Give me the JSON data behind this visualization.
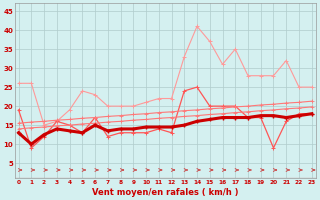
{
  "x": [
    0,
    1,
    2,
    3,
    4,
    5,
    6,
    7,
    8,
    9,
    10,
    11,
    12,
    13,
    14,
    15,
    16,
    17,
    18,
    19,
    20,
    21,
    22,
    23
  ],
  "line_rafales_max": [
    26,
    26,
    15,
    16,
    19,
    24,
    23,
    20,
    20,
    20,
    21,
    22,
    22,
    33,
    41,
    37,
    31,
    35,
    28,
    28,
    28,
    32,
    25,
    25
  ],
  "line_vent_moyen": [
    19,
    9,
    12,
    16,
    15,
    13,
    17,
    12,
    13,
    13,
    13,
    14,
    13,
    24,
    25,
    20,
    20,
    20,
    17,
    17,
    9,
    16,
    18,
    18
  ],
  "line_trend1": [
    15.5,
    15.8,
    16.0,
    16.3,
    16.5,
    16.8,
    17.0,
    17.3,
    17.5,
    17.8,
    18.0,
    18.3,
    18.5,
    18.8,
    19.0,
    19.3,
    19.5,
    19.8,
    20.0,
    20.3,
    20.5,
    20.8,
    21.0,
    21.3
  ],
  "line_trend2": [
    14.0,
    14.3,
    14.5,
    14.8,
    15.0,
    15.3,
    15.5,
    15.8,
    16.0,
    16.3,
    16.5,
    16.8,
    17.0,
    17.3,
    17.5,
    17.8,
    18.0,
    18.3,
    18.5,
    18.8,
    19.0,
    19.3,
    19.5,
    19.8
  ],
  "line_heavy": [
    13.0,
    10.0,
    12.5,
    14.0,
    13.5,
    13.0,
    15.0,
    13.5,
    14.0,
    14.0,
    14.5,
    14.5,
    14.5,
    15.0,
    16.0,
    16.5,
    17.0,
    17.0,
    17.0,
    17.5,
    17.5,
    17.0,
    17.5,
    18.0
  ],
  "bg_color": "#d4f0f0",
  "grid_color": "#b0cccc",
  "color_light_pink": "#ff9999",
  "color_medium_red": "#ff5555",
  "color_dark_red": "#cc0000",
  "color_trend": "#ff7777",
  "xlabel": "Vent moyen/en rafales ( km/h )",
  "yticks": [
    5,
    10,
    15,
    20,
    25,
    30,
    35,
    40,
    45
  ],
  "ylim": [
    1,
    47
  ],
  "xlim": [
    -0.3,
    23.3
  ]
}
